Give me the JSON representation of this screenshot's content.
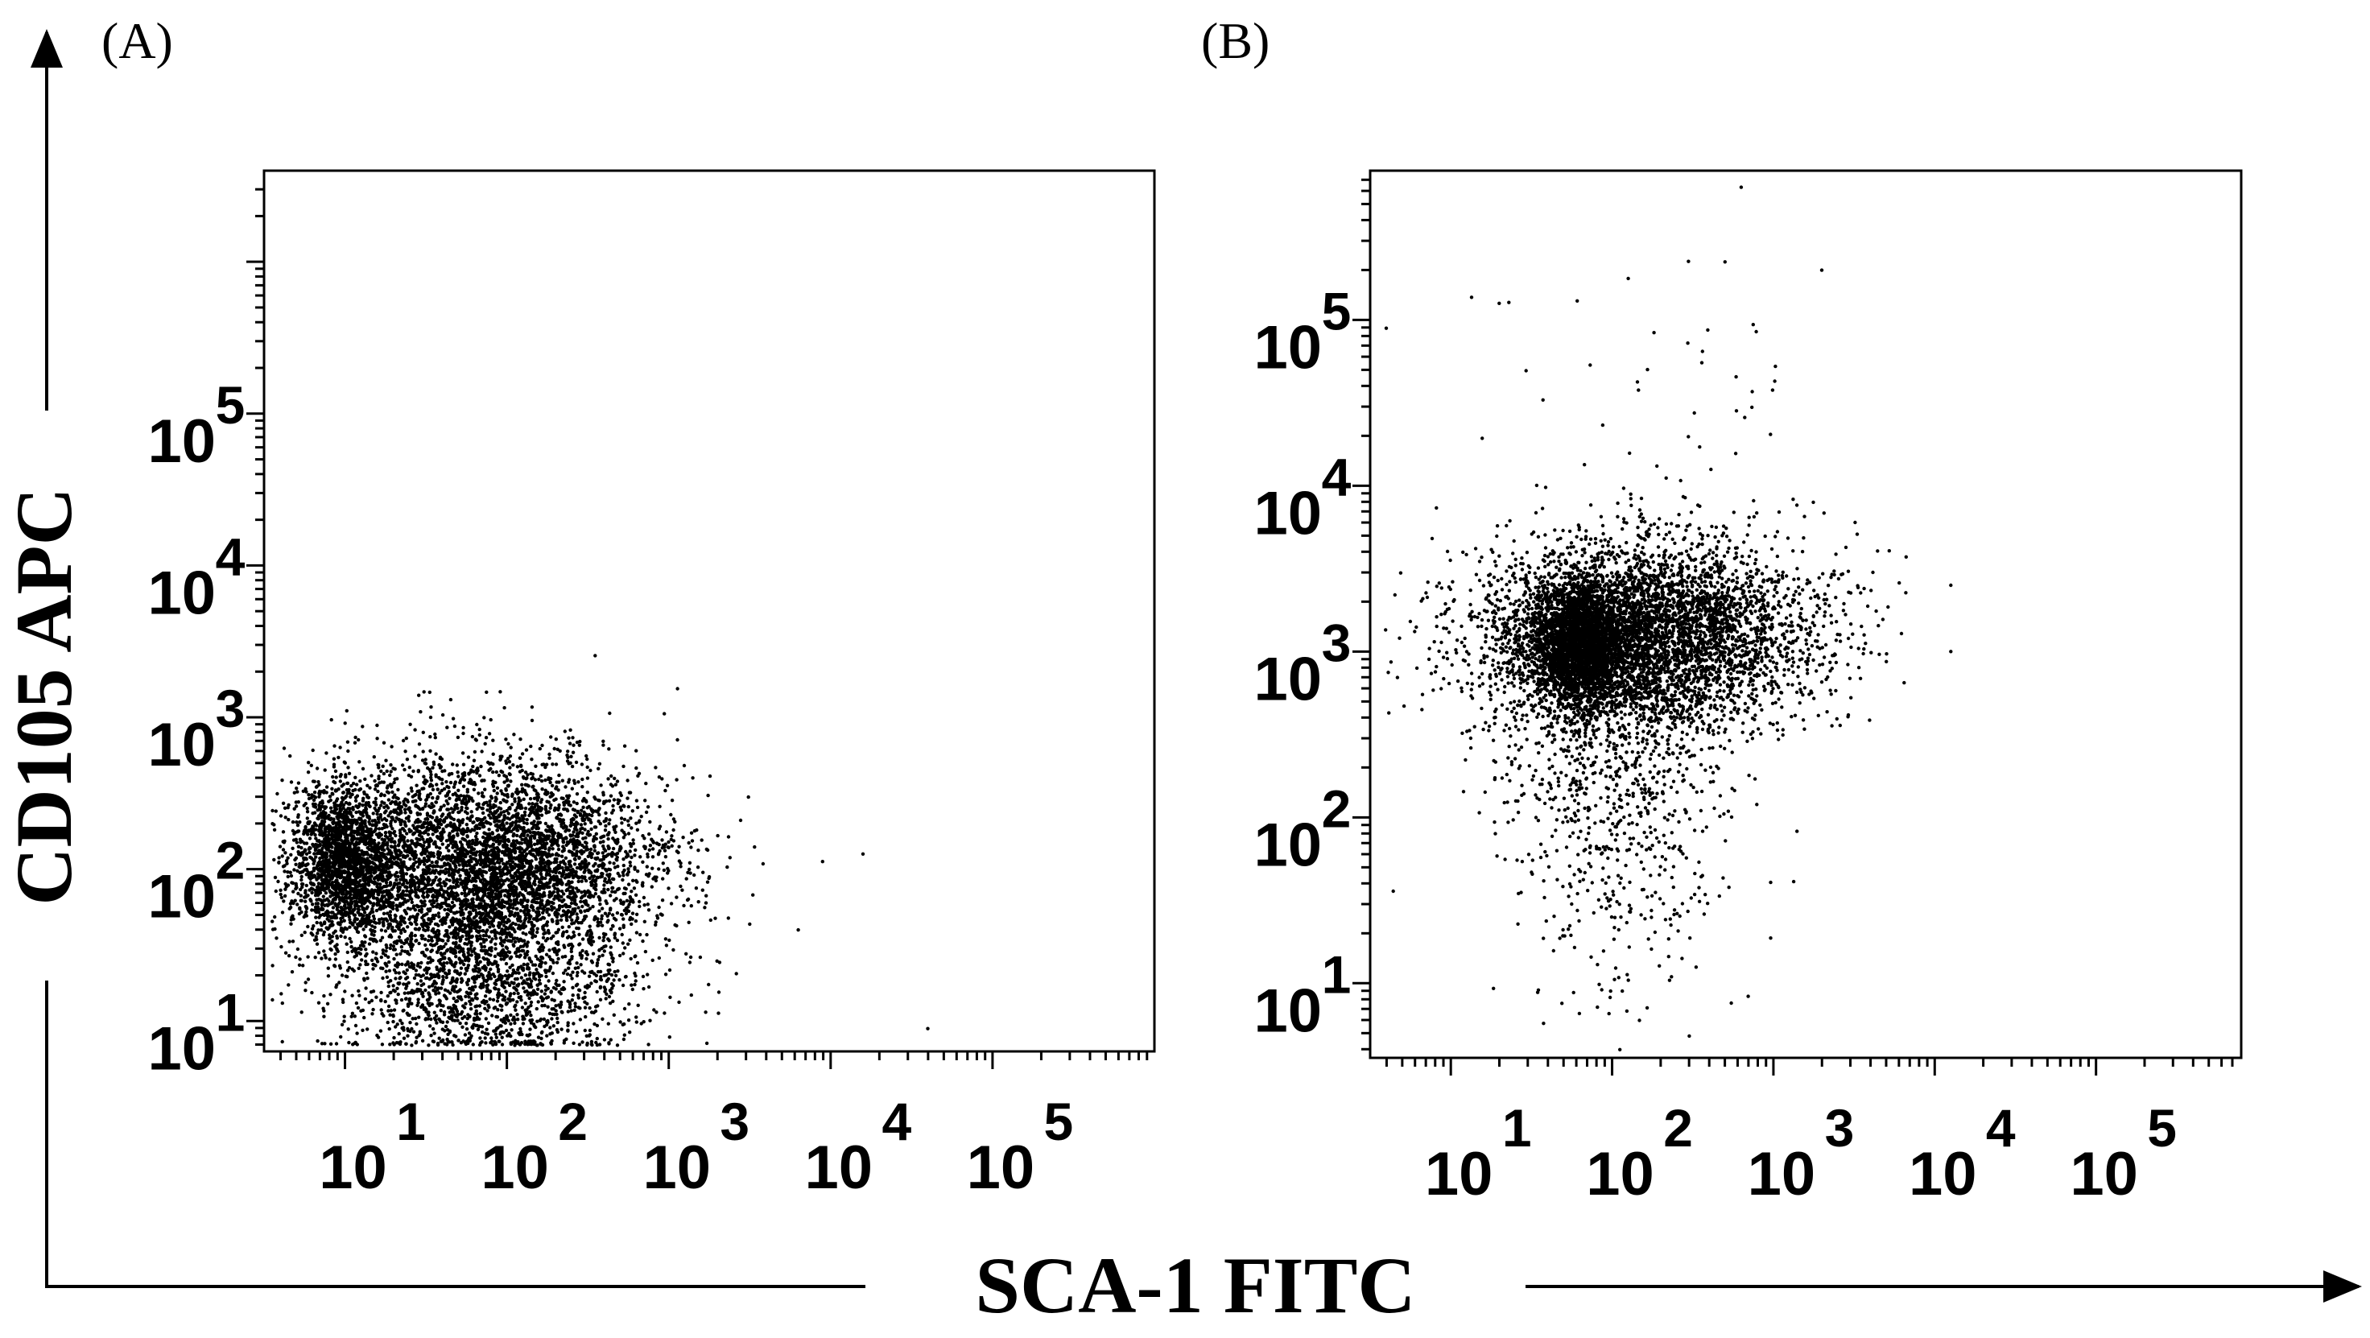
{
  "figure": {
    "x_axis_title": "SCA-1 FITC",
    "y_axis_title": "CD105 APC",
    "arrow_color": "#000000",
    "dot_color": "#000000"
  },
  "chart_data": [
    {
      "type": "scatter",
      "panel_label": "(A)",
      "xlabel": "SCA-1 FITC",
      "ylabel": "CD105 APC",
      "x_scale": "log",
      "y_scale": "log",
      "xlim": [
        0.5,
        6.0
      ],
      "ylim": [
        0.8,
        6.6
      ],
      "x_ticks": [
        {
          "base": "10",
          "exp": "1",
          "v": 1
        },
        {
          "base": "10",
          "exp": "2",
          "v": 2
        },
        {
          "base": "10",
          "exp": "3",
          "v": 3
        },
        {
          "base": "10",
          "exp": "4",
          "v": 4
        },
        {
          "base": "10",
          "exp": "5",
          "v": 5
        }
      ],
      "y_ticks": [
        {
          "base": "10",
          "exp": "1",
          "v": 1
        },
        {
          "base": "10",
          "exp": "2",
          "v": 2
        },
        {
          "base": "10",
          "exp": "3",
          "v": 3
        },
        {
          "base": "10",
          "exp": "4",
          "v": 4
        },
        {
          "base": "10",
          "exp": "5",
          "v": 5
        }
      ],
      "clusters": [
        {
          "cx": 1.9,
          "cy": 2.0,
          "sx": 1.05,
          "sy": 0.36,
          "n": 5200,
          "xmin": 0.55,
          "xmax": 3.6
        },
        {
          "cx": 1.0,
          "cy": 2.05,
          "sx": 0.3,
          "sy": 0.26,
          "n": 1800,
          "xmin": 0.55,
          "xmax": 3.6
        },
        {
          "cx": 1.85,
          "cy": 1.15,
          "sx": 0.95,
          "sy": 0.22,
          "n": 1100,
          "xmin": 0.55,
          "xmax": 3.4
        }
      ],
      "outliers": [
        {
          "x": 3.95,
          "y": 2.05
        },
        {
          "x": 4.2,
          "y": 2.1
        },
        {
          "x": 3.8,
          "y": 1.6
        },
        {
          "x": 4.6,
          "y": 0.95
        }
      ],
      "points_shown": 8104
    },
    {
      "type": "scatter",
      "panel_label": "(B)",
      "xlabel": "SCA-1 FITC",
      "ylabel": "CD105 APC",
      "x_scale": "log",
      "y_scale": "log",
      "xlim": [
        0.5,
        5.9
      ],
      "ylim": [
        0.55,
        5.9
      ],
      "x_ticks": [
        {
          "base": "10",
          "exp": "1",
          "v": 1
        },
        {
          "base": "10",
          "exp": "2",
          "v": 2
        },
        {
          "base": "10",
          "exp": "3",
          "v": 3
        },
        {
          "base": "10",
          "exp": "4",
          "v": 4
        },
        {
          "base": "10",
          "exp": "5",
          "v": 5
        }
      ],
      "y_ticks": [
        {
          "base": "10",
          "exp": "1",
          "v": 1
        },
        {
          "base": "10",
          "exp": "2",
          "v": 2
        },
        {
          "base": "10",
          "exp": "3",
          "v": 3
        },
        {
          "base": "10",
          "exp": "4",
          "v": 4
        },
        {
          "base": "10",
          "exp": "5",
          "v": 5
        }
      ],
      "clusters": [
        {
          "cx": 2.2,
          "cy": 3.1,
          "sx": 1.05,
          "sy": 0.28,
          "n": 4800,
          "xmin": 0.5,
          "xmax": 3.9
        },
        {
          "cx": 1.8,
          "cy": 3.05,
          "sx": 0.3,
          "sy": 0.18,
          "n": 2400,
          "xmin": 0.5,
          "xmax": 3.9
        },
        {
          "cx": 2.0,
          "cy": 2.3,
          "sx": 0.75,
          "sy": 0.45,
          "n": 700,
          "xmin": 0.6,
          "xmax": 3.8
        },
        {
          "cx": 2.1,
          "cy": 1.5,
          "sx": 0.8,
          "sy": 0.45,
          "n": 140,
          "xmin": 0.7,
          "xmax": 3.8
        },
        {
          "cx": 2.3,
          "cy": 4.4,
          "sx": 1.0,
          "sy": 0.45,
          "n": 45,
          "xmin": 0.8,
          "xmax": 3.6
        }
      ],
      "outliers": [
        {
          "x": 1.3,
          "y": 5.1
        },
        {
          "x": 2.1,
          "y": 5.25
        },
        {
          "x": 2.7,
          "y": 5.35
        },
        {
          "x": 3.3,
          "y": 5.3
        },
        {
          "x": 2.8,
          "y": 5.8
        },
        {
          "x": 0.6,
          "y": 4.95
        },
        {
          "x": 4.1,
          "y": 3.4
        },
        {
          "x": 4.1,
          "y": 3.0
        }
      ],
      "points_shown": 8093
    }
  ]
}
